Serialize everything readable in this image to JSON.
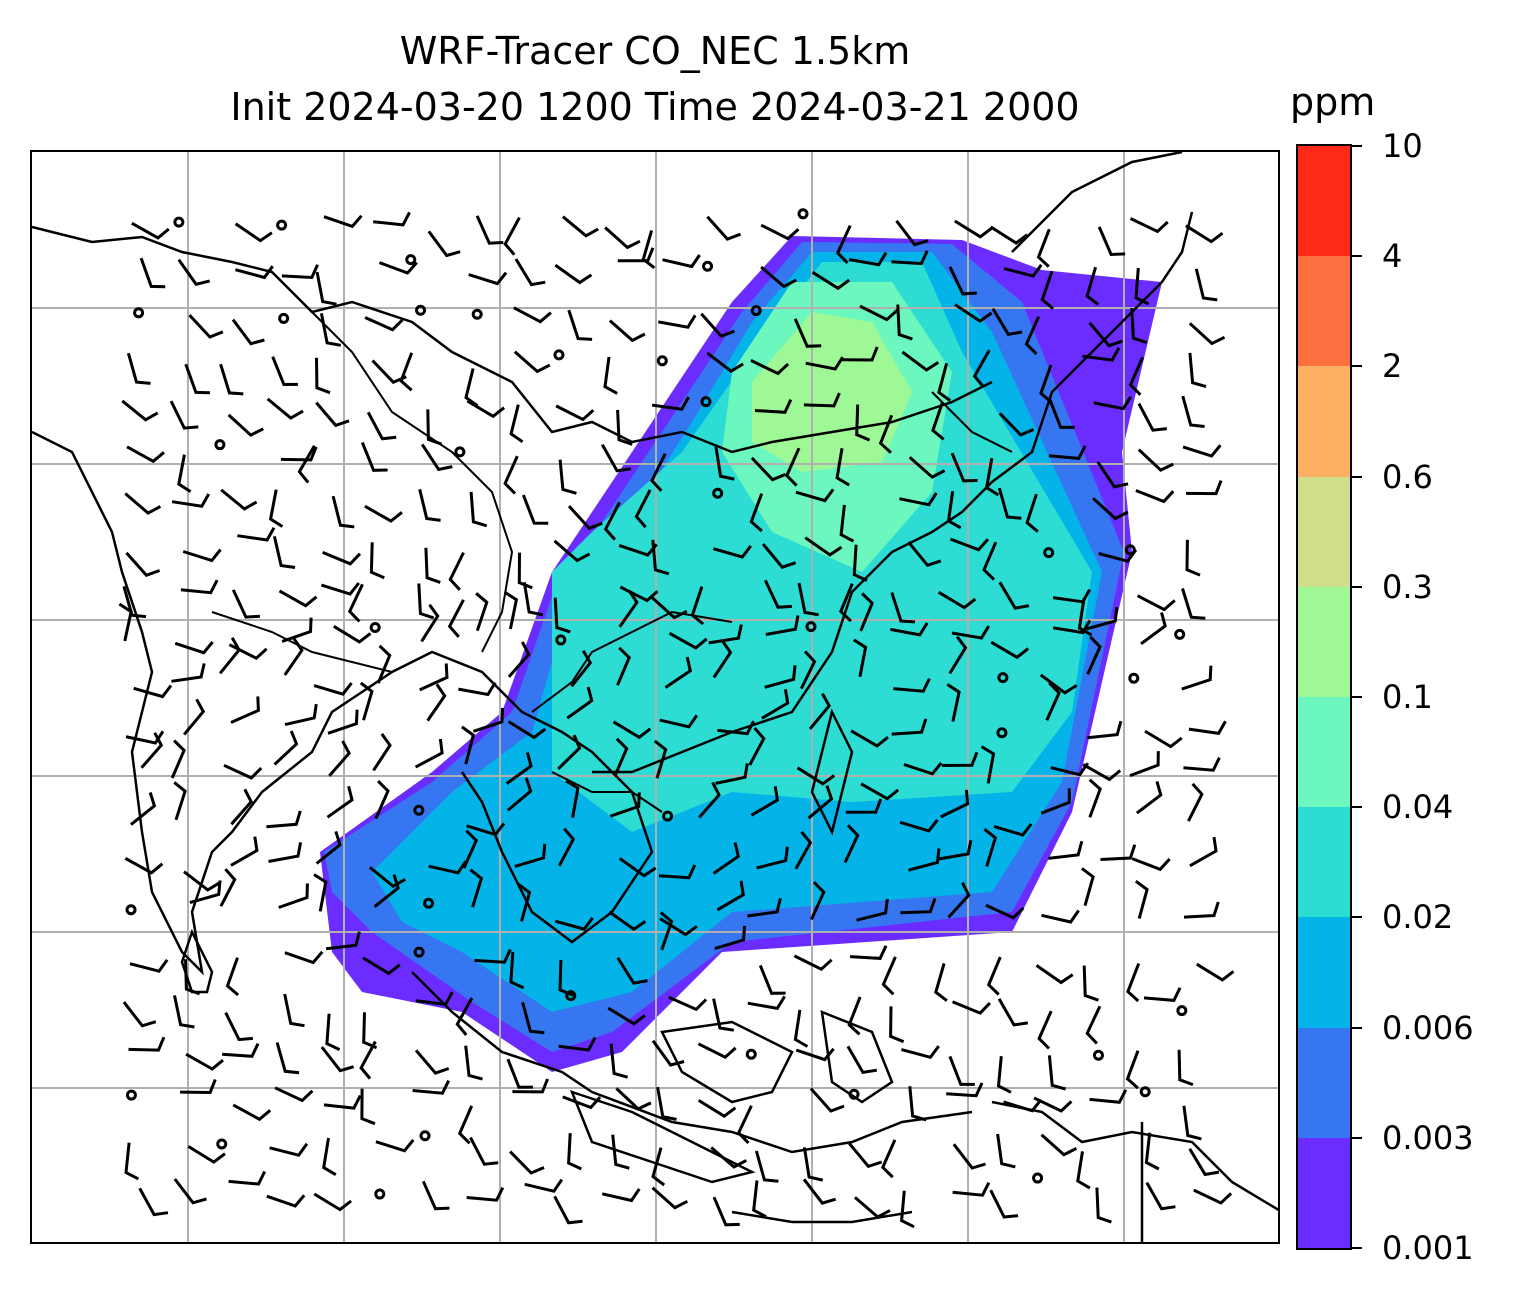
{
  "title": {
    "line1": "WRF-Tracer CO_NEC 1.5km",
    "line2": "Init 2024-03-20 1200 Time 2024-03-21 2000"
  },
  "colorbar": {
    "units": "ppm",
    "ticks": [
      "0.001",
      "0.003",
      "0.006",
      "0.02",
      "0.04",
      "0.1",
      "0.3",
      "0.6",
      "2",
      "4",
      "10"
    ],
    "colors": [
      "#6a2cff",
      "#3676f0",
      "#04b4e8",
      "#2ddcd2",
      "#6cf7bf",
      "#9ef896",
      "#cfdf88",
      "#fdb064",
      "#ff7040",
      "#ff2a18"
    ]
  },
  "map": {
    "grid": true,
    "features": [
      "coastlines",
      "country-borders",
      "wind-barbs",
      "co-tracer-shading"
    ]
  }
}
